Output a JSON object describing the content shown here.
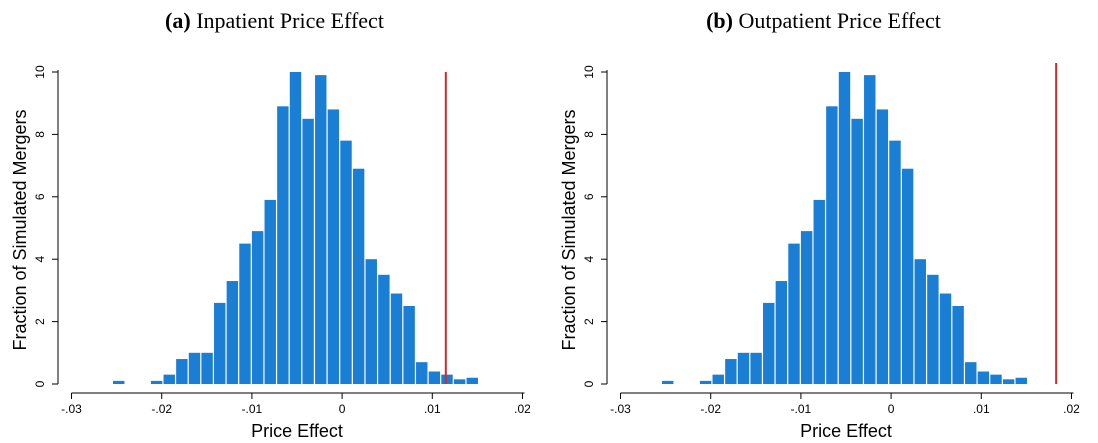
{
  "chart_data": [
    {
      "type": "bar",
      "panel_tag": "(a)",
      "title": "Inpatient Price Effect",
      "xlabel": "Price Effect",
      "ylabel": "Fraction of Simulated Mergers",
      "xlim": [
        -0.0315,
        0.0215
      ],
      "ylim": [
        0,
        10
      ],
      "x_ticks": [
        -0.03,
        -0.02,
        -0.01,
        0,
        0.01,
        0.02
      ],
      "x_tick_labels": [
        "-.03",
        "-.02",
        "-.01",
        "0",
        ".01",
        ".02"
      ],
      "y_ticks": [
        0,
        2,
        4,
        6,
        8,
        10
      ],
      "y_tick_labels": [
        "0",
        "2",
        "4",
        "6",
        "8",
        "10"
      ],
      "bin_width": 0.0014,
      "bins": [
        {
          "x0": -0.0254,
          "value": 0.1
        },
        {
          "x0": -0.0212,
          "value": 0.1
        },
        {
          "x0": -0.0198,
          "value": 0.3
        },
        {
          "x0": -0.0184,
          "value": 0.8
        },
        {
          "x0": -0.017,
          "value": 1.0
        },
        {
          "x0": -0.0156,
          "value": 1.0
        },
        {
          "x0": -0.0142,
          "value": 2.6
        },
        {
          "x0": -0.0128,
          "value": 3.3
        },
        {
          "x0": -0.0114,
          "value": 4.5
        },
        {
          "x0": -0.01,
          "value": 4.9
        },
        {
          "x0": -0.0086,
          "value": 5.9
        },
        {
          "x0": -0.0072,
          "value": 8.9
        },
        {
          "x0": -0.0058,
          "value": 10.0
        },
        {
          "x0": -0.0044,
          "value": 8.5
        },
        {
          "x0": -0.003,
          "value": 9.9
        },
        {
          "x0": -0.0016,
          "value": 8.8
        },
        {
          "x0": -0.0002,
          "value": 7.8
        },
        {
          "x0": 0.0012,
          "value": 6.9
        },
        {
          "x0": 0.0026,
          "value": 4.0
        },
        {
          "x0": 0.004,
          "value": 3.5
        },
        {
          "x0": 0.0054,
          "value": 2.9
        },
        {
          "x0": 0.0068,
          "value": 2.5
        },
        {
          "x0": 0.0082,
          "value": 0.7
        },
        {
          "x0": 0.0096,
          "value": 0.4
        },
        {
          "x0": 0.011,
          "value": 0.3
        },
        {
          "x0": 0.0124,
          "value": 0.15
        },
        {
          "x0": 0.0138,
          "value": 0.2
        }
      ],
      "reference_line_x": 0.0115,
      "bar_color": "#1a7fd4",
      "reference_line_color": "#d62728"
    },
    {
      "type": "bar",
      "panel_tag": "(b)",
      "title": "Outpatient Price Effect",
      "xlabel": "Price Effect",
      "ylabel": "Fraction of Simulated Mergers",
      "xlim": [
        -0.0315,
        0.0215
      ],
      "ylim": [
        0,
        10
      ],
      "x_ticks": [
        -0.03,
        -0.02,
        -0.01,
        0,
        0.01,
        0.02
      ],
      "x_tick_labels": [
        "-.03",
        "-.02",
        "-.01",
        "0",
        ".01",
        ".02"
      ],
      "y_ticks": [
        0,
        2,
        4,
        6,
        8,
        10
      ],
      "y_tick_labels": [
        "0",
        "2",
        "4",
        "6",
        "8",
        "10"
      ],
      "bin_width": 0.0014,
      "bins": [
        {
          "x0": -0.0254,
          "value": 0.1
        },
        {
          "x0": -0.0212,
          "value": 0.1
        },
        {
          "x0": -0.0198,
          "value": 0.3
        },
        {
          "x0": -0.0184,
          "value": 0.8
        },
        {
          "x0": -0.017,
          "value": 1.0
        },
        {
          "x0": -0.0156,
          "value": 1.0
        },
        {
          "x0": -0.0142,
          "value": 2.6
        },
        {
          "x0": -0.0128,
          "value": 3.3
        },
        {
          "x0": -0.0114,
          "value": 4.5
        },
        {
          "x0": -0.01,
          "value": 4.9
        },
        {
          "x0": -0.0086,
          "value": 5.9
        },
        {
          "x0": -0.0072,
          "value": 8.9
        },
        {
          "x0": -0.0058,
          "value": 10.0
        },
        {
          "x0": -0.0044,
          "value": 8.5
        },
        {
          "x0": -0.003,
          "value": 9.9
        },
        {
          "x0": -0.0016,
          "value": 8.8
        },
        {
          "x0": -0.0002,
          "value": 7.8
        },
        {
          "x0": 0.0012,
          "value": 6.9
        },
        {
          "x0": 0.0026,
          "value": 4.0
        },
        {
          "x0": 0.004,
          "value": 3.5
        },
        {
          "x0": 0.0054,
          "value": 2.9
        },
        {
          "x0": 0.0068,
          "value": 2.5
        },
        {
          "x0": 0.0082,
          "value": 0.7
        },
        {
          "x0": 0.0096,
          "value": 0.4
        },
        {
          "x0": 0.011,
          "value": 0.3
        },
        {
          "x0": 0.0124,
          "value": 0.15
        },
        {
          "x0": 0.0138,
          "value": 0.2
        }
      ],
      "reference_line_x": 0.0183,
      "bar_color": "#1a7fd4",
      "reference_line_color": "#d62728"
    }
  ]
}
